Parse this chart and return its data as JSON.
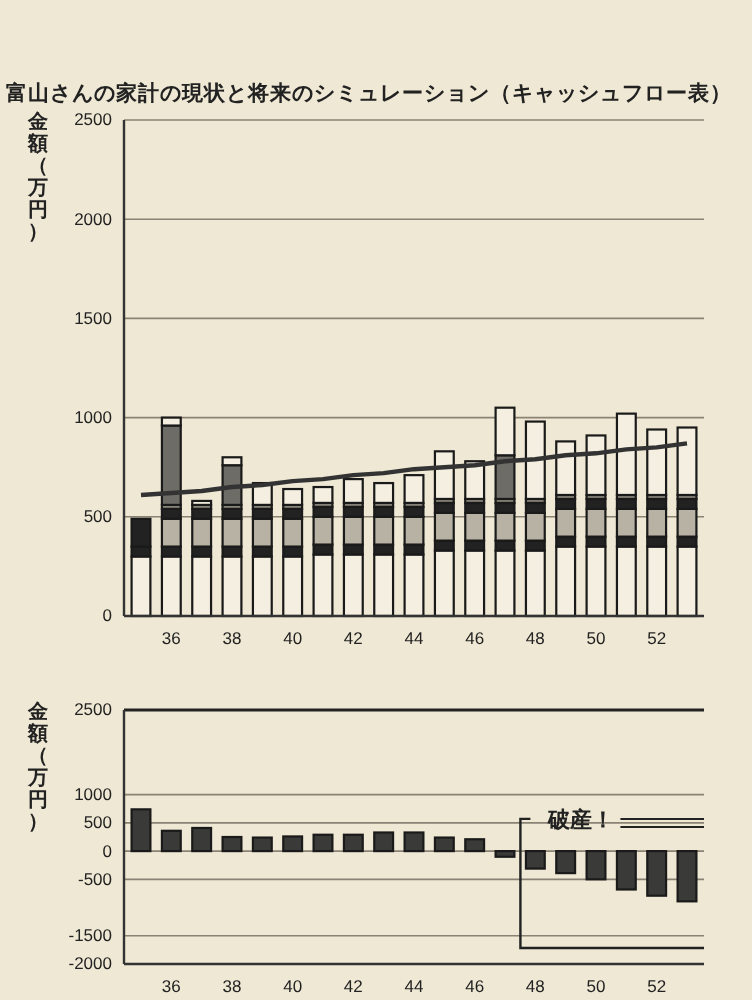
{
  "chart_data": [
    {
      "type": "bar",
      "title": "富山さんの家計の現状と将来のシミュレーション（キャッシュフロー表）",
      "ylabel": "金額（万円）",
      "stacked": true,
      "grid": "y",
      "categories": [
        null,
        "36",
        null,
        "38",
        null,
        "40",
        null,
        "42",
        null,
        "44",
        null,
        "46",
        null,
        "48",
        null,
        "50",
        null,
        "52",
        null
      ],
      "ylim": [
        0,
        2500
      ],
      "yticks": [
        0,
        500,
        1000,
        1500,
        2000,
        2500
      ],
      "series": [
        {
          "color": "#f4efe0",
          "values": [
            300,
            300,
            300,
            300,
            300,
            300,
            310,
            310,
            310,
            310,
            330,
            330,
            330,
            330,
            350,
            350,
            350,
            350,
            350
          ]
        },
        {
          "color": "#222222",
          "values": [
            50,
            50,
            50,
            50,
            50,
            50,
            50,
            50,
            50,
            50,
            50,
            50,
            50,
            50,
            50,
            50,
            50,
            50,
            50
          ]
        },
        {
          "color": "#b8b2a4",
          "values": [
            0,
            140,
            140,
            140,
            140,
            140,
            140,
            140,
            140,
            140,
            140,
            140,
            140,
            140,
            140,
            140,
            140,
            140,
            140
          ]
        },
        {
          "color": "#222222",
          "values": [
            140,
            50,
            50,
            50,
            50,
            50,
            50,
            50,
            50,
            50,
            50,
            50,
            50,
            50,
            50,
            50,
            50,
            50,
            50
          ]
        },
        {
          "color": "#8a867c",
          "values": [
            0,
            20,
            20,
            20,
            20,
            20,
            20,
            20,
            20,
            20,
            20,
            20,
            20,
            20,
            20,
            20,
            20,
            20,
            20
          ]
        },
        {
          "color": "#6e6c66",
          "values": [
            0,
            400,
            0,
            200,
            0,
            0,
            0,
            0,
            0,
            0,
            0,
            0,
            220,
            0,
            0,
            0,
            0,
            0,
            0
          ]
        },
        {
          "color": "#f4efe0",
          "values": [
            0,
            40,
            20,
            40,
            110,
            80,
            80,
            120,
            100,
            140,
            240,
            190,
            240,
            390,
            270,
            300,
            410,
            330,
            340
          ]
        },
        {
          "type": "line",
          "color": "#333333",
          "line_style": "solid",
          "marker": "none",
          "values": [
            610,
            620,
            630,
            650,
            660,
            680,
            690,
            710,
            720,
            740,
            750,
            760,
            780,
            790,
            810,
            820,
            840,
            850,
            870
          ]
        }
      ]
    },
    {
      "type": "bar",
      "ylabel": "金額（万円）",
      "grid": "y",
      "categories": [
        null,
        "36",
        null,
        "38",
        null,
        "40",
        null,
        "42",
        null,
        "44",
        null,
        "46",
        null,
        "48",
        null,
        "50",
        null,
        "52",
        null
      ],
      "ylim": [
        -2000,
        2500
      ],
      "yticks": [
        2500,
        1000,
        500,
        0,
        -500,
        -1500,
        -2000
      ],
      "series": [
        {
          "color": "#3a3a38",
          "values": [
            740,
            360,
            410,
            250,
            240,
            260,
            290,
            290,
            330,
            330,
            240,
            210,
            -100,
            -310,
            -390,
            -500,
            -680,
            -790,
            -890
          ]
        }
      ],
      "annotations": [
        "破産！"
      ]
    }
  ]
}
